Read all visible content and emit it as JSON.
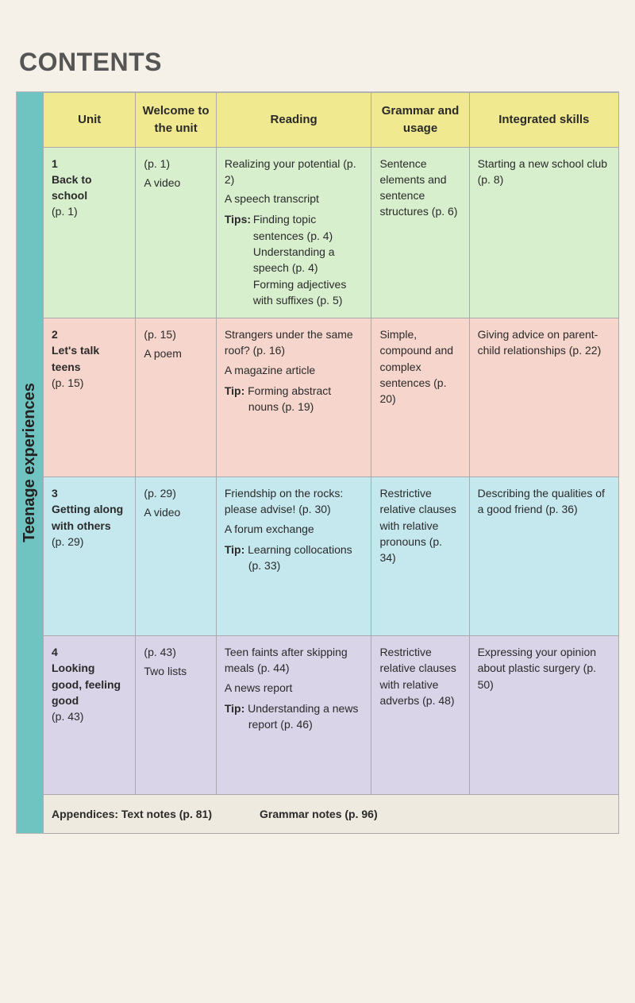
{
  "page_title": "CONTENTS",
  "side_label": "Teenage experiences",
  "header": {
    "unit": "Unit",
    "welcome": "Welcome to the unit",
    "reading": "Reading",
    "grammar": "Grammar and usage",
    "integrated": "Integrated skills"
  },
  "rows": [
    {
      "num": "1",
      "title": "Back to school",
      "page": "(p. 1)",
      "welcome_page": "(p. 1)",
      "welcome_item": "A video",
      "reading_main": "Realizing your potential (p. 2)",
      "reading_sub": "A speech transcript",
      "tips_label": "Tips:",
      "tips": [
        "Finding topic sentences (p. 4)",
        "Understanding a speech (p. 4)",
        "Forming adjectives with suffixes (p. 5)"
      ],
      "grammar": "Sentence elements and sentence structures (p. 6)",
      "integrated": "Starting a new school club (p. 8)"
    },
    {
      "num": "2",
      "title": "Let's talk teens",
      "page": "(p. 15)",
      "welcome_page": "(p. 15)",
      "welcome_item": "A poem",
      "reading_main": "Strangers under the same roof? (p. 16)",
      "reading_sub": "A magazine article",
      "tip_label": "Tip:",
      "tip": "Forming abstract nouns (p. 19)",
      "grammar": "Simple, compound and complex sentences (p. 20)",
      "integrated": "Giving advice on parent-child relationships (p. 22)"
    },
    {
      "num": "3",
      "title": "Getting along with others",
      "page": "(p. 29)",
      "welcome_page": "(p. 29)",
      "welcome_item": "A video",
      "reading_main": "Friendship on the rocks: please advise! (p. 30)",
      "reading_sub": "A forum exchange",
      "tip_label": "Tip:",
      "tip": "Learning collocations (p. 33)",
      "grammar": "Restrictive relative clauses with relative pronouns (p. 34)",
      "integrated": "Describing the qualities of a good friend (p. 36)"
    },
    {
      "num": "4",
      "title": "Looking good, feeling good",
      "page": "(p. 43)",
      "welcome_page": "(p. 43)",
      "welcome_item": "Two lists",
      "reading_main": "Teen faints after skipping meals (p. 44)",
      "reading_sub": "A news report",
      "tip_label": "Tip:",
      "tip": "Understanding a news report (p. 46)",
      "grammar": "Restrictive relative clauses with relative adverbs (p. 48)",
      "integrated": "Expressing your opinion about plastic surgery (p. 50)"
    }
  ],
  "footer": {
    "appendices": "Appendices: Text notes (p. 81)",
    "grammar_notes": "Grammar notes (p. 96)"
  },
  "row_heights": [
    "190px",
    "200px",
    "200px",
    "200px"
  ],
  "colors": {
    "page_bg": "#f5f0e8",
    "header_bg": "#f1e98f",
    "side_bg": "#6fc4c2",
    "row_bgs": [
      "#d8efce",
      "#f6d6cc",
      "#c4e8ee",
      "#d9d4e8"
    ],
    "footer_bg": "#eeeadf",
    "border": "#aaaaaa"
  }
}
